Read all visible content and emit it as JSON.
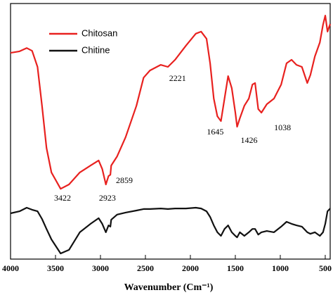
{
  "chart_data": {
    "type": "line",
    "xlabel": "Wavenumber (Cm⁻¹)",
    "x": [
      4000,
      3900,
      3820,
      3760,
      3700,
      3650,
      3600,
      3545,
      3443,
      3350,
      3230,
      3110,
      3020,
      2980,
      2940,
      2910,
      2890,
      2880,
      2815,
      2720,
      2600,
      2520,
      2450,
      2330,
      2250,
      2170,
      2050,
      1940,
      1880,
      1820,
      1780,
      1740,
      1700,
      1660,
      1620,
      1580,
      1540,
      1500,
      1480,
      1450,
      1400,
      1350,
      1310,
      1280,
      1245,
      1210,
      1150,
      1070,
      990,
      930,
      875,
      820,
      760,
      700,
      665,
      615,
      560,
      525,
      500,
      475,
      445
    ],
    "series": [
      {
        "name": "Chitosan",
        "color": "#e8211f",
        "values": [
          80.7,
          81.3,
          82.6,
          81.5,
          75.2,
          60,
          43.5,
          33.9,
          27.5,
          29.2,
          33.9,
          36.6,
          38.6,
          35.3,
          29.2,
          32.5,
          33,
          36.6,
          40.2,
          47.7,
          60,
          71,
          73.8,
          76,
          75.2,
          78,
          83.5,
          88.2,
          89,
          86.2,
          76.6,
          62.8,
          55.9,
          54,
          62.8,
          71.6,
          66.9,
          57.3,
          51.8,
          55.1,
          60,
          62.8,
          68.3,
          68.9,
          58.7,
          57.3,
          60.6,
          62.8,
          68.3,
          76.6,
          78,
          76,
          75.2,
          68.9,
          72,
          79.3,
          84.8,
          91.7,
          95.3,
          89,
          92
        ]
      },
      {
        "name": "Chitine",
        "color": "#111111",
        "values": [
          17.9,
          18.7,
          20.1,
          19.3,
          18.7,
          15.7,
          11.8,
          7.7,
          2.2,
          3.6,
          10.5,
          13.8,
          16,
          13.8,
          10.5,
          13.2,
          12.7,
          15.4,
          17.4,
          18.2,
          19,
          19.6,
          19.6,
          19.8,
          19.6,
          19.8,
          19.8,
          20.1,
          19.8,
          18.7,
          16.5,
          13.2,
          10.5,
          9.1,
          11.8,
          13.2,
          10.5,
          9.1,
          8.5,
          10.5,
          9.1,
          10.5,
          11.8,
          11.8,
          9.6,
          10.5,
          11,
          10.5,
          12.7,
          14.6,
          13.8,
          13.2,
          12.7,
          10.5,
          9.9,
          10.5,
          9.1,
          10.5,
          13.8,
          18.7,
          19.8
        ]
      }
    ],
    "annotations": [
      3422,
      2923,
      2859,
      2221,
      1645,
      1426,
      1038
    ],
    "xlim": [
      4000,
      445
    ],
    "xticks": [
      4000,
      3500,
      3000,
      2500,
      2000,
      1500,
      1000,
      500
    ],
    "ylim": [
      0,
      100
    ],
    "legend": "upper left"
  }
}
